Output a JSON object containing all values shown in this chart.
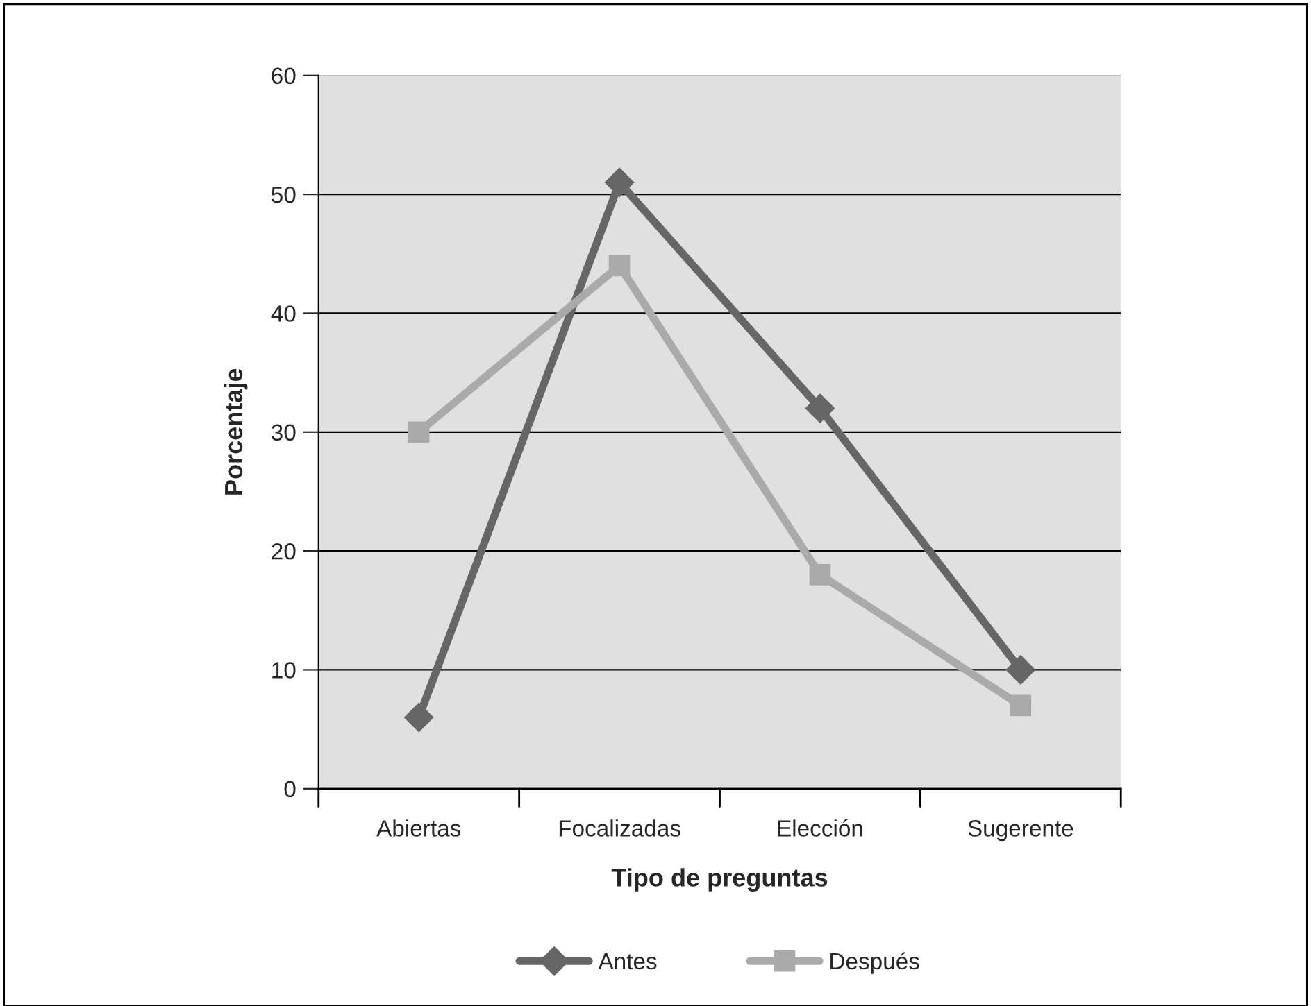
{
  "chart_data": {
    "type": "line",
    "xlabel": "Tipo de preguntas",
    "ylabel": "Porcentaje",
    "categories": [
      "Abiertas",
      "Focalizadas",
      "Elección",
      "Sugerente"
    ],
    "series": [
      {
        "name": "Antes",
        "color": "#666666",
        "marker": "diamond",
        "values": [
          6,
          51,
          32,
          10
        ]
      },
      {
        "name": "Después",
        "color": "#aaaaaa",
        "marker": "square",
        "values": [
          30,
          44,
          18,
          7
        ]
      }
    ],
    "ylim": [
      0,
      60
    ],
    "yticks": [
      0,
      10,
      20,
      30,
      40,
      50,
      60
    ],
    "grid": "y",
    "legend": "bottom",
    "line_style": "solid"
  }
}
